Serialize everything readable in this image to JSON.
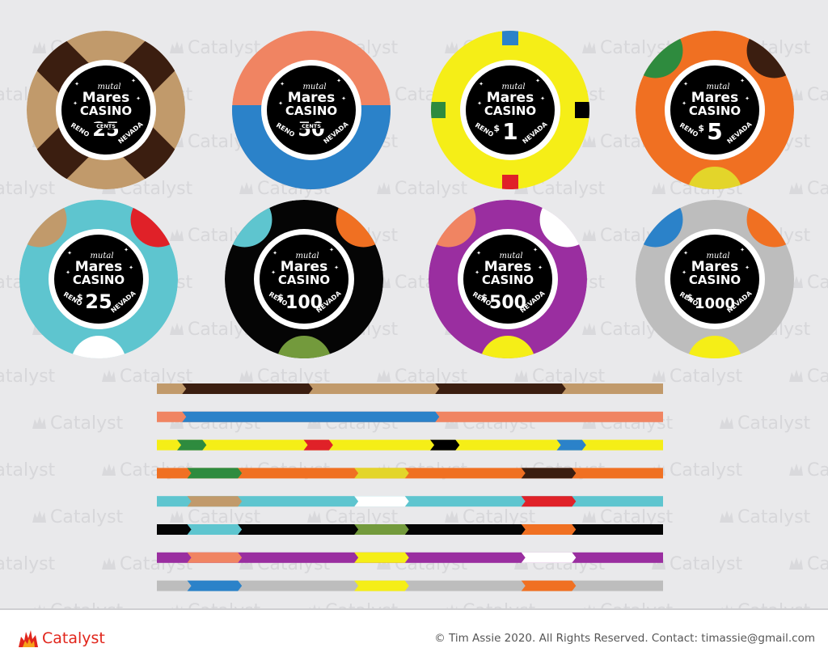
{
  "watermark": {
    "text": "Catalyst"
  },
  "chip_label": {
    "script": "mutal",
    "brand": "Mares",
    "venue": "CASINO",
    "city": "RENO",
    "state": "NEVADA"
  },
  "chips": [
    {
      "id": "25-cents",
      "base": "#c19a6b",
      "accent": "#3b1e10",
      "pattern": "cross4",
      "dollar": false,
      "amount": "25",
      "unit": "CENTS"
    },
    {
      "id": "50-cents",
      "base": "#f08462",
      "accent": "#2b82c9",
      "pattern": "half",
      "dollar": false,
      "amount": "50",
      "unit": "CENTS"
    },
    {
      "id": "1-dollar",
      "base": "#f5ee17",
      "pattern": "squares",
      "dollar": true,
      "amount": "1",
      "unit": "",
      "spots": [
        "#2b82c9",
        "#e02128",
        "#000000",
        "#2e8b3e"
      ]
    },
    {
      "id": "5-dollar",
      "base": "#f07022",
      "pattern": "edge-dots",
      "dollar": true,
      "amount": "5",
      "unit": "",
      "spots": [
        "#2e8b3e",
        "#3b1e10",
        "#e3d52a"
      ]
    },
    {
      "id": "25-dollar",
      "base": "#5ec5cf",
      "pattern": "edge-dots",
      "dollar": true,
      "amount": "25",
      "unit": "",
      "spots": [
        "#c19a6b",
        "#e02128",
        "#ffffff"
      ]
    },
    {
      "id": "100-dollar",
      "base": "#050505",
      "pattern": "edge-dots",
      "dollar": true,
      "amount": "100",
      "unit": "",
      "spots": [
        "#5ec5cf",
        "#f07022",
        "#739a3c"
      ]
    },
    {
      "id": "500-dollar",
      "base": "#9a2ea0",
      "pattern": "edge-dots",
      "dollar": true,
      "amount": "500",
      "unit": "",
      "spots": [
        "#f08462",
        "#ffffff",
        "#f5ee17"
      ]
    },
    {
      "id": "1000-dollar",
      "base": "#bdbdbd",
      "pattern": "edge-dots",
      "dollar": true,
      "amount": "1000",
      "unit": "",
      "spots": [
        "#2b82c9",
        "#f07022",
        "#f5ee17"
      ]
    }
  ],
  "edge_strips": [
    {
      "base": "#c19a6b",
      "segments": [
        [
          "#3b1e10",
          0.05,
          0.3
        ],
        [
          "#3b1e10",
          0.55,
          0.8
        ]
      ]
    },
    {
      "base": "#f08462",
      "segments": [
        [
          "#2b82c9",
          0.05,
          0.55
        ]
      ]
    },
    {
      "base": "#f5ee17",
      "segments": [
        [
          "#2e8b3e",
          0.04,
          0.09
        ],
        [
          "#e02128",
          0.29,
          0.34
        ],
        [
          "#000000",
          0.54,
          0.59
        ],
        [
          "#2b82c9",
          0.79,
          0.84
        ]
      ]
    },
    {
      "base": "#f07022",
      "segments": [
        [
          "#2e8b3e",
          0.06,
          0.16
        ],
        [
          "#e3d52a",
          0.39,
          0.49
        ],
        [
          "#3b1e10",
          0.72,
          0.82
        ]
      ]
    },
    {
      "base": "#5ec5cf",
      "segments": [
        [
          "#c19a6b",
          0.06,
          0.16
        ],
        [
          "#ffffff",
          0.39,
          0.49
        ],
        [
          "#e02128",
          0.72,
          0.82
        ]
      ]
    },
    {
      "base": "#050505",
      "segments": [
        [
          "#5ec5cf",
          0.06,
          0.16
        ],
        [
          "#739a3c",
          0.39,
          0.49
        ],
        [
          "#f07022",
          0.72,
          0.82
        ]
      ]
    },
    {
      "base": "#9a2ea0",
      "segments": [
        [
          "#f08462",
          0.06,
          0.16
        ],
        [
          "#f5ee17",
          0.39,
          0.49
        ],
        [
          "#ffffff",
          0.72,
          0.82
        ]
      ]
    },
    {
      "base": "#bdbdbd",
      "segments": [
        [
          "#2b82c9",
          0.06,
          0.16
        ],
        [
          "#f5ee17",
          0.39,
          0.49
        ],
        [
          "#f07022",
          0.72,
          0.82
        ]
      ]
    }
  ],
  "footer": {
    "brand": "Catalyst",
    "copyright": "© Tim Assie 2020. All Rights Reserved. Contact: timassie@gmail.com",
    "brand_color": "#e1251b"
  }
}
